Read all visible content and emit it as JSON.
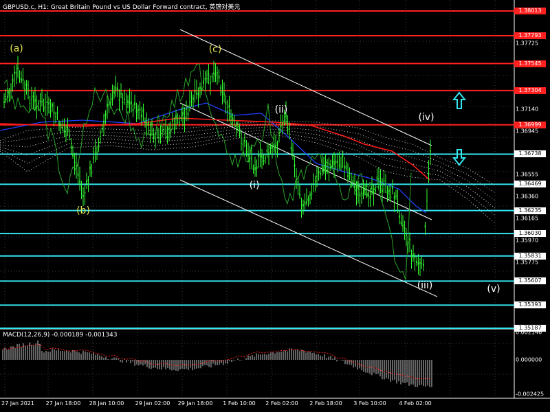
{
  "title": "GBPUSD.c, H1:  Great Britain Pound vs US Dollar Forward contract, 英镑对美元",
  "macd_label": "MACD(12,26,9) -0.000189 -0.001343",
  "colors": {
    "background": "#000000",
    "grid": "#3a3a3a",
    "candles": "#33ff33",
    "resistance": "#ff2020",
    "support": "#33e6f0",
    "channel": "#ffffff",
    "wave_yellow": "#e6e64d",
    "wave_white": "#ffffff",
    "ma_red": "#ff1a1a",
    "ma_blue": "#2040ff",
    "macd_hist": "#c8c8c8",
    "macd_signal": "#ff2020"
  },
  "price_axis": [
    "1.37725",
    "1.37140",
    "1.36945",
    "1.36555",
    "1.36360",
    "1.36165",
    "1.35970",
    "1.35775"
  ],
  "macd_axis": [
    "0.002146",
    "0.000000",
    "-0.002425"
  ],
  "red_levels": [
    "1.38013",
    "1.37793",
    "1.37545",
    "1.37304",
    "1.36999"
  ],
  "cyan_levels": [
    "1.36738",
    "1.36469",
    "1.36235",
    "1.36030",
    "1.35831",
    "1.35607",
    "1.35393",
    "1.35187"
  ],
  "time_axis": [
    "27 Jan 2021",
    "27 Jan 18:00",
    "28 Jan 10:00",
    "29 Jan 02:00",
    "29 Jan 18:00",
    "1 Feb 10:00",
    "2 Feb 02:00",
    "2 Feb 18:00",
    "3 Feb 10:00",
    "4 Feb 02:00"
  ],
  "wave_labels": [
    {
      "text": "(a)",
      "color": "yellow"
    },
    {
      "text": "(b)",
      "color": "yellow"
    },
    {
      "text": "(c)",
      "color": "yellow"
    },
    {
      "text": "(i)",
      "color": "white"
    },
    {
      "text": "(ii)",
      "color": "white"
    },
    {
      "text": "(iii)",
      "color": "white"
    },
    {
      "text": "(iv)",
      "color": "white"
    },
    {
      "text": "(v)",
      "color": "white"
    }
  ],
  "arrows": [
    {
      "direction": "up",
      "icon": "arrow-up-outline-icon"
    },
    {
      "direction": "down",
      "icon": "arrow-down-outline-icon"
    }
  ]
}
